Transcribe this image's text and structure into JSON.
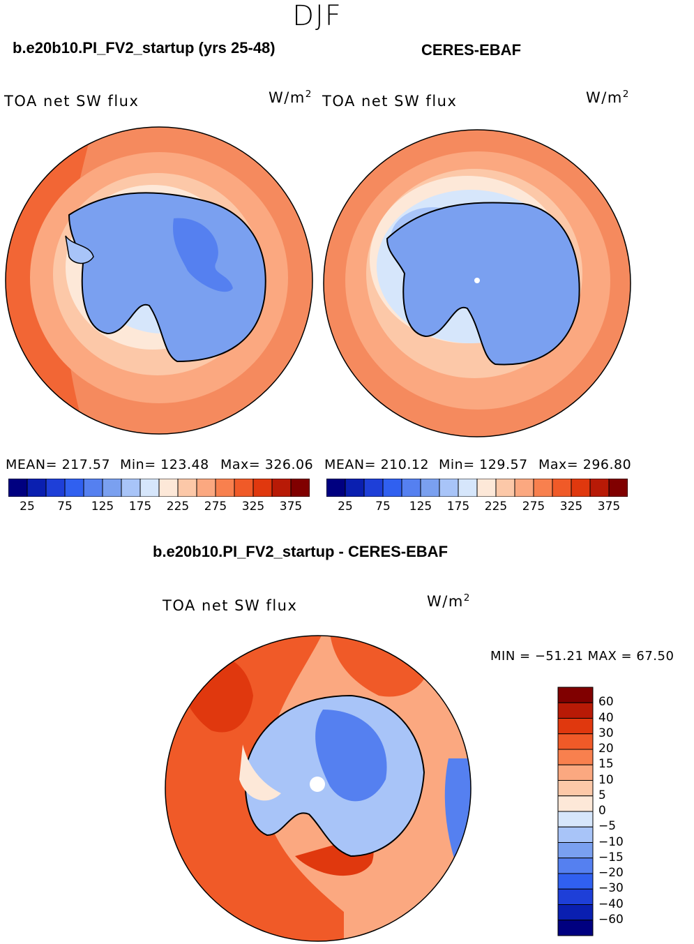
{
  "season": "DJF",
  "panel_left": {
    "case": "b.e20b10.PI_FV2_startup (yrs 25-48)",
    "variable": "TOA net SW flux",
    "units_base": "W/m",
    "units_exp": "2",
    "mean_label": "MEAN= 217.57",
    "min_label": "Min= 123.48",
    "max_label": "Max= 326.06"
  },
  "panel_right": {
    "case": "CERES-EBAF",
    "variable": "TOA net SW flux",
    "units_base": "W/m",
    "units_exp": "2",
    "mean_label": "MEAN= 210.12",
    "min_label": "Min= 129.57",
    "max_label": "Max= 296.80"
  },
  "panel_diff": {
    "title": "b.e20b10.PI_FV2_startup - CERES-EBAF",
    "variable": "TOA net SW flux",
    "units_base": "W/m",
    "units_exp": "2",
    "minmax_label": "MIN = −51.21  MAX =   67.50"
  },
  "colorbar_abs": {
    "colors": [
      "#000080",
      "#0a1fb0",
      "#1e3fd8",
      "#3060f0",
      "#5580f0",
      "#7aa0f0",
      "#a8c4f8",
      "#d6e6fb",
      "#fde8d8",
      "#fcc8a8",
      "#fba880",
      "#f8804e",
      "#f05a28",
      "#e0380e",
      "#b81a06",
      "#800000"
    ],
    "tick_labels": [
      "25",
      "75",
      "125",
      "175",
      "225",
      "275",
      "325",
      "375"
    ]
  },
  "colorbar_diff": {
    "colors": [
      "#800000",
      "#b81a06",
      "#e0380e",
      "#f05a28",
      "#f8804e",
      "#fba880",
      "#fcc8a8",
      "#fde8d8",
      "#d6e6fb",
      "#a8c4f8",
      "#7aa0f0",
      "#5580f0",
      "#3060f0",
      "#1e3fd8",
      "#0a1fb0",
      "#000080"
    ],
    "tick_labels": [
      "60",
      "40",
      "30",
      "20",
      "15",
      "10",
      "5",
      "0",
      "−5",
      "−10",
      "−15",
      "−20",
      "−30",
      "−40",
      "−60"
    ]
  },
  "field_colors": {
    "ocean_far": "#f58a5e",
    "ocean_mid": "#fba880",
    "ocean_near": "#fcc8a8",
    "sea_ice": "#fde8d8",
    "coast_band": "#d6e6fb",
    "ice_shelf": "#a8c4f8",
    "antarctica": "#7aa0f0",
    "antarctica_low": "#5580f0",
    "diff_pos_strong": "#e0380e",
    "diff_pos": "#f05a28",
    "diff_pos_weak": "#fba880",
    "diff_neutral": "#fde8d8",
    "diff_neg_weak": "#a8c4f8",
    "diff_neg": "#5580f0",
    "coastline": "#000000"
  }
}
